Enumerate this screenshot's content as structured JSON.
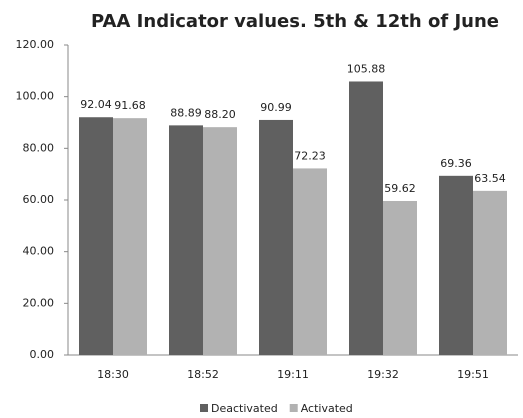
{
  "chart_data": {
    "type": "bar",
    "title": "PAA Indicator values. 5th & 12th of June",
    "categories": [
      "18:30",
      "18:52",
      "19:11",
      "19:32",
      "19:51"
    ],
    "series": [
      {
        "name": "Deactivated",
        "color": "#606060",
        "values": [
          92.04,
          88.89,
          90.99,
          105.88,
          69.36
        ],
        "value_labels": [
          "92.04",
          "88.89",
          "90.99",
          "105.88",
          "69.36"
        ]
      },
      {
        "name": "Activated",
        "color": "#b2b2b2",
        "values": [
          91.68,
          88.2,
          72.23,
          59.62,
          63.54
        ],
        "value_labels": [
          "91.68",
          "88.20",
          "72.23",
          "59.62",
          "63.54"
        ]
      }
    ],
    "ylim": [
      0,
      120
    ],
    "yticks": [
      {
        "value": 0,
        "label": "0.00"
      },
      {
        "value": 20,
        "label": "20.00"
      },
      {
        "value": 40,
        "label": "40.00"
      },
      {
        "value": 60,
        "label": "60.00"
      },
      {
        "value": 80,
        "label": "80.00"
      },
      {
        "value": 100,
        "label": "100.00"
      },
      {
        "value": 120,
        "label": "120.00"
      }
    ],
    "grid": false,
    "legend": "bottom"
  }
}
